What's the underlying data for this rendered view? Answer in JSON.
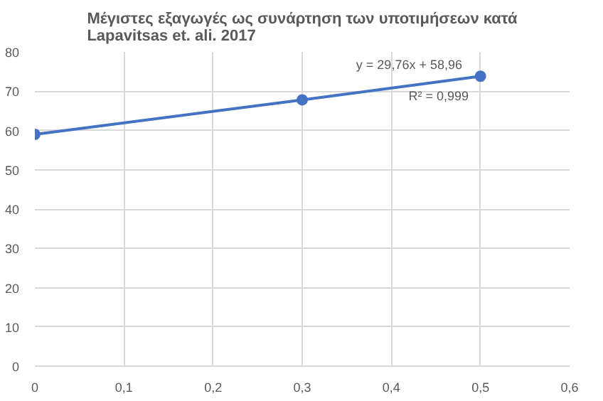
{
  "chart_data": {
    "type": "line",
    "title": "Μέγιστες εξαγωγές ως συνάρτηση των υποτιμήσεων κατά\nLapavitsas et. ali. 2017",
    "x": [
      0,
      0.3,
      0.5
    ],
    "series": [
      {
        "color": "#4472c4",
        "values": [
          59,
          67.8,
          73.8
        ],
        "marker": "circle"
      }
    ],
    "xlim": [
      0,
      0.6
    ],
    "xticks": [
      0,
      {
        "value": 0.1,
        "label": "0,1"
      },
      {
        "value": 0.2,
        "label": "0,2"
      },
      {
        "value": 0.3,
        "label": "0,3"
      },
      {
        "value": 0.4,
        "label": "0,4"
      },
      {
        "value": 0.5,
        "label": "0,5"
      },
      {
        "value": 0.6,
        "label": "0,6"
      }
    ],
    "ylim": [
      0,
      80
    ],
    "yticks": [
      0,
      10,
      20,
      30,
      40,
      50,
      60,
      70,
      80
    ],
    "grid": true,
    "annotations": [
      "y = 29,76x + 58,96",
      "R² = 0,999"
    ]
  }
}
